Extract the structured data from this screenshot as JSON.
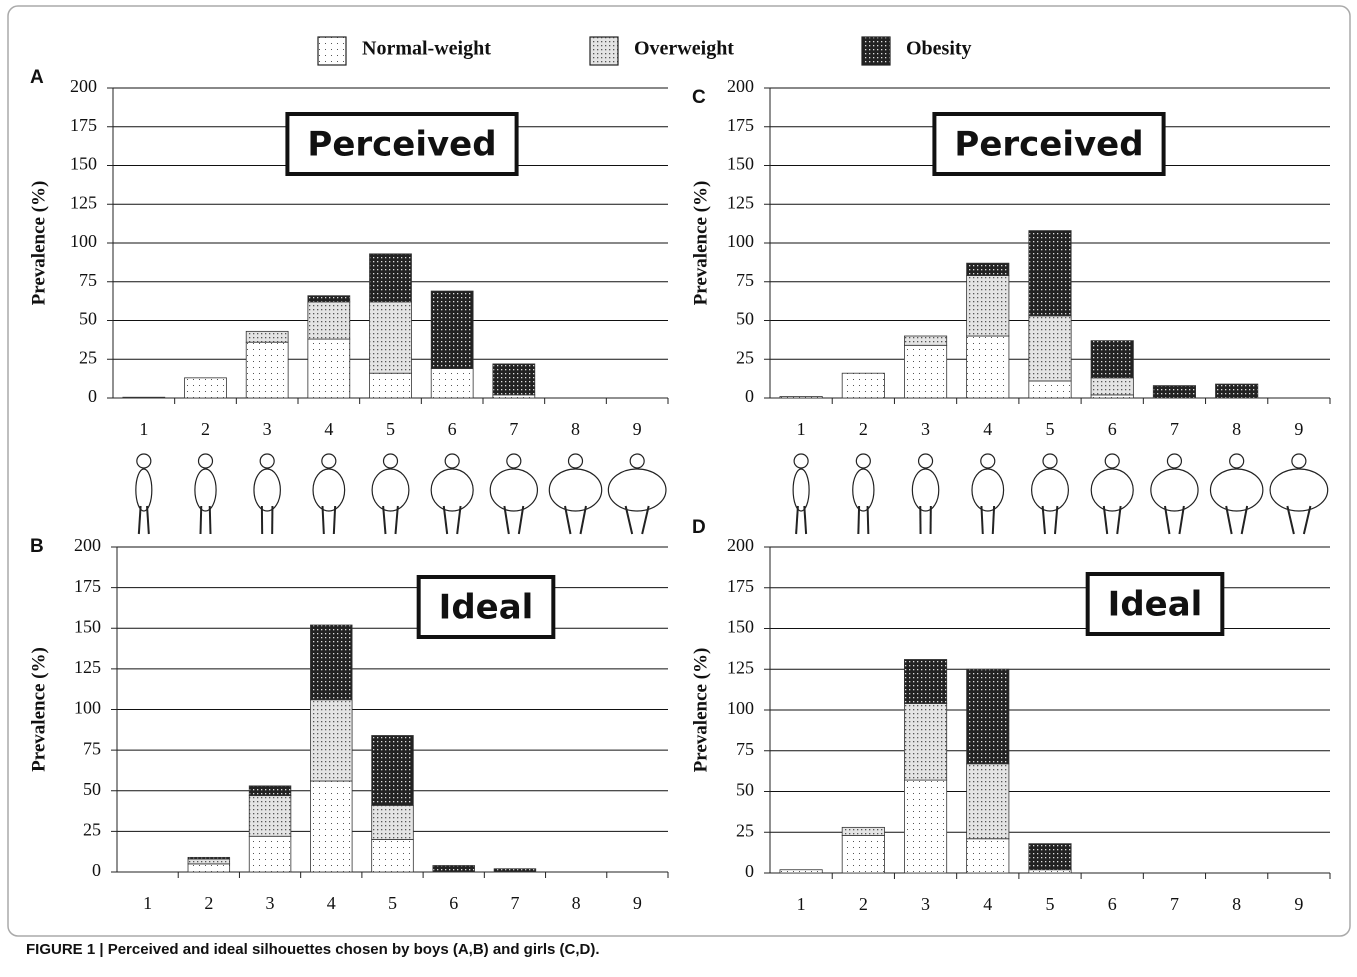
{
  "caption": "FIGURE 1 | Perceived and ideal silhouettes chosen by boys (A,B) and girls (C,D).",
  "chart_data": [
    {
      "type": "bar",
      "stacked": true,
      "panel": "A",
      "annotation": "Perceived",
      "y_label": "Prevalence (%)",
      "categories": [
        "1",
        "2",
        "3",
        "4",
        "5",
        "6",
        "7",
        "8",
        "9"
      ],
      "series": [
        {
          "name": "Normal-weight",
          "color": "#ffffff",
          "values": [
            0.5,
            13,
            36,
            38,
            16,
            19,
            2,
            0,
            0
          ]
        },
        {
          "name": "Overweight",
          "color": "#e4e4e4",
          "values": [
            0,
            0,
            7,
            24,
            46,
            0,
            0,
            0,
            0
          ]
        },
        {
          "name": "Obesity",
          "color": "#222222",
          "values": [
            0,
            0,
            0,
            4,
            31,
            50,
            20,
            0,
            0
          ]
        }
      ],
      "ylim": [
        0,
        200
      ],
      "yticks": [
        0,
        25,
        50,
        75,
        100,
        125,
        150,
        175,
        200
      ],
      "grid": true
    },
    {
      "type": "bar",
      "stacked": true,
      "panel": "B",
      "annotation": "Ideal",
      "y_label": "Prevalence (%)",
      "categories": [
        "1",
        "2",
        "3",
        "4",
        "5",
        "6",
        "7",
        "8",
        "9"
      ],
      "series": [
        {
          "name": "Normal-weight",
          "color": "#ffffff",
          "values": [
            0,
            5,
            22,
            56,
            20,
            0,
            0,
            0,
            0
          ]
        },
        {
          "name": "Overweight",
          "color": "#e4e4e4",
          "values": [
            0,
            3,
            25,
            50,
            21,
            0,
            0,
            0,
            0
          ]
        },
        {
          "name": "Obesity",
          "color": "#222222",
          "values": [
            0,
            1,
            6,
            46,
            43,
            4,
            2,
            0,
            0
          ]
        }
      ],
      "ylim": [
        0,
        200
      ],
      "yticks": [
        0,
        25,
        50,
        75,
        100,
        125,
        150,
        175,
        200
      ],
      "grid": true
    },
    {
      "type": "bar",
      "stacked": true,
      "panel": "C",
      "annotation": "Perceived",
      "y_label": "Prevalence (%)",
      "categories": [
        "1",
        "2",
        "3",
        "4",
        "5",
        "6",
        "7",
        "8",
        "9"
      ],
      "series": [
        {
          "name": "Normal-weight",
          "color": "#ffffff",
          "values": [
            1,
            16,
            34,
            40,
            11,
            2,
            0,
            0,
            0
          ]
        },
        {
          "name": "Overweight",
          "color": "#e4e4e4",
          "values": [
            0,
            0,
            6,
            39,
            42,
            11,
            0,
            0,
            0
          ]
        },
        {
          "name": "Obesity",
          "color": "#222222",
          "values": [
            0,
            0,
            0,
            8,
            55,
            24,
            8,
            9,
            0
          ]
        }
      ],
      "ylim": [
        0,
        200
      ],
      "yticks": [
        0,
        25,
        50,
        75,
        100,
        125,
        150,
        175,
        200
      ],
      "grid": true
    },
    {
      "type": "bar",
      "stacked": true,
      "panel": "D",
      "annotation": "Ideal",
      "y_label": "Prevalence (%)",
      "categories": [
        "1",
        "2",
        "3",
        "4",
        "5",
        "6",
        "7",
        "8",
        "9"
      ],
      "series": [
        {
          "name": "Normal-weight",
          "color": "#ffffff",
          "values": [
            2,
            23,
            57,
            21,
            2,
            0,
            0,
            0,
            0
          ]
        },
        {
          "name": "Overweight",
          "color": "#e4e4e4",
          "values": [
            0,
            5,
            47,
            46,
            0,
            0,
            0,
            0,
            0
          ]
        },
        {
          "name": "Obesity",
          "color": "#222222",
          "values": [
            0,
            0,
            27,
            58,
            16,
            0,
            0,
            0,
            0
          ]
        }
      ],
      "ylim": [
        0,
        200
      ],
      "yticks": [
        0,
        25,
        50,
        75,
        100,
        125,
        150,
        175,
        200
      ],
      "grid": true
    }
  ]
}
